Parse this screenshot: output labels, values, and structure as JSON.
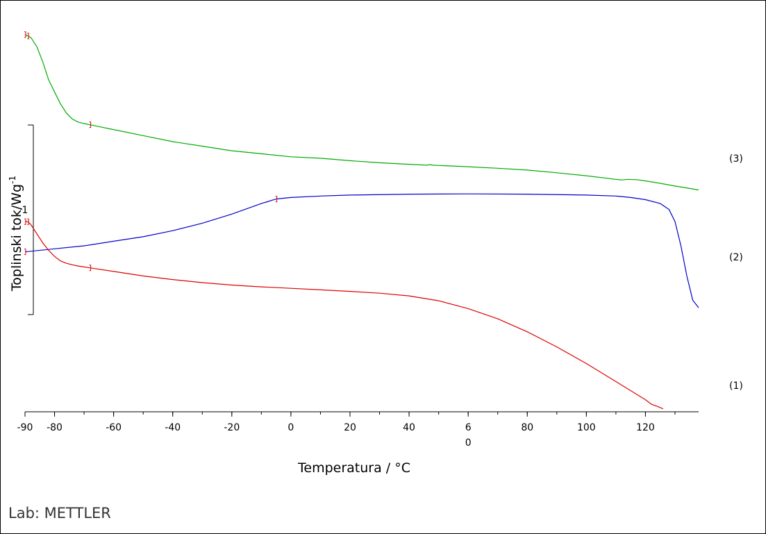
{
  "chart_data": {
    "type": "line",
    "title": "",
    "xlabel": "Temperatura / °C",
    "ylabel": "Toplinski tok/Wg",
    "ylabel_superscript": "-1",
    "xlim": [
      -90,
      138
    ],
    "x_ticks": [
      "-90",
      "-80",
      "-60",
      "-40",
      "-20",
      "0",
      "20",
      "40",
      "6\n0",
      "80",
      "100",
      "120"
    ],
    "x_tick_values": [
      -90,
      -80,
      -60,
      -40,
      -20,
      0,
      20,
      40,
      60,
      80,
      100,
      120
    ],
    "scale_bar_label": "1",
    "series": [
      {
        "name": "(3)",
        "color": "#00aa00",
        "x": [
          -90,
          -88,
          -86,
          -84,
          -82,
          -80,
          -78,
          -76,
          -74,
          -72,
          -70,
          -65,
          -60,
          -50,
          -40,
          -30,
          -20,
          -10,
          0,
          10,
          20,
          30,
          40,
          46,
          47,
          48,
          60,
          70,
          80,
          90,
          100,
          110,
          112,
          114,
          117,
          120,
          125,
          130,
          135,
          138
        ],
        "y": [
          0.95,
          0.94,
          0.91,
          0.86,
          0.8,
          0.76,
          0.72,
          0.69,
          0.67,
          0.66,
          0.655,
          0.645,
          0.635,
          0.615,
          0.595,
          0.58,
          0.565,
          0.555,
          0.545,
          0.54,
          0.532,
          0.525,
          0.52,
          0.517,
          0.519,
          0.517,
          0.512,
          0.507,
          0.501,
          0.492,
          0.482,
          0.47,
          0.468,
          0.47,
          0.469,
          0.465,
          0.457,
          0.448,
          0.44,
          0.435
        ]
      },
      {
        "name": "(2)",
        "color": "#0000cc",
        "x": [
          -90,
          -80,
          -70,
          -60,
          -50,
          -40,
          -30,
          -20,
          -10,
          -5,
          0,
          10,
          20,
          40,
          60,
          80,
          100,
          110,
          115,
          120,
          125,
          128,
          130,
          132,
          134,
          136,
          138
        ],
        "y": [
          0.23,
          0.24,
          0.25,
          0.265,
          0.28,
          0.3,
          0.325,
          0.355,
          0.39,
          0.405,
          0.41,
          0.415,
          0.418,
          0.421,
          0.422,
          0.421,
          0.418,
          0.415,
          0.41,
          0.403,
          0.39,
          0.37,
          0.33,
          0.25,
          0.15,
          0.07,
          0.045
        ]
      },
      {
        "name": "(1)",
        "color": "#dd0000",
        "x": [
          -90,
          -89,
          -88,
          -86,
          -84,
          -82,
          -80,
          -78,
          -76,
          -74,
          -72,
          -70,
          -68,
          -60,
          -50,
          -40,
          -30,
          -20,
          -10,
          0,
          10,
          20,
          30,
          40,
          50,
          60,
          70,
          80,
          90,
          100,
          110,
          120,
          122,
          124,
          126
        ],
        "y": [
          0.33,
          0.33,
          0.32,
          0.29,
          0.26,
          0.235,
          0.215,
          0.2,
          0.192,
          0.187,
          0.183,
          0.18,
          0.177,
          0.165,
          0.15,
          0.138,
          0.128,
          0.12,
          0.114,
          0.109,
          0.104,
          0.099,
          0.093,
          0.084,
          0.068,
          0.042,
          0.008,
          -0.035,
          -0.085,
          -0.14,
          -0.2,
          -0.26,
          -0.275,
          -0.282,
          -0.29
        ]
      }
    ],
    "markers": [
      {
        "series": "(3)",
        "x": [
          -90,
          -89,
          -68
        ]
      },
      {
        "series": "(2)",
        "x": [
          -90,
          -5
        ]
      },
      {
        "series": "(1)",
        "x": [
          -90,
          -89,
          -68
        ]
      }
    ],
    "grid": false,
    "legend": "none"
  },
  "footer": {
    "lab_label": "Lab: METTLER"
  }
}
